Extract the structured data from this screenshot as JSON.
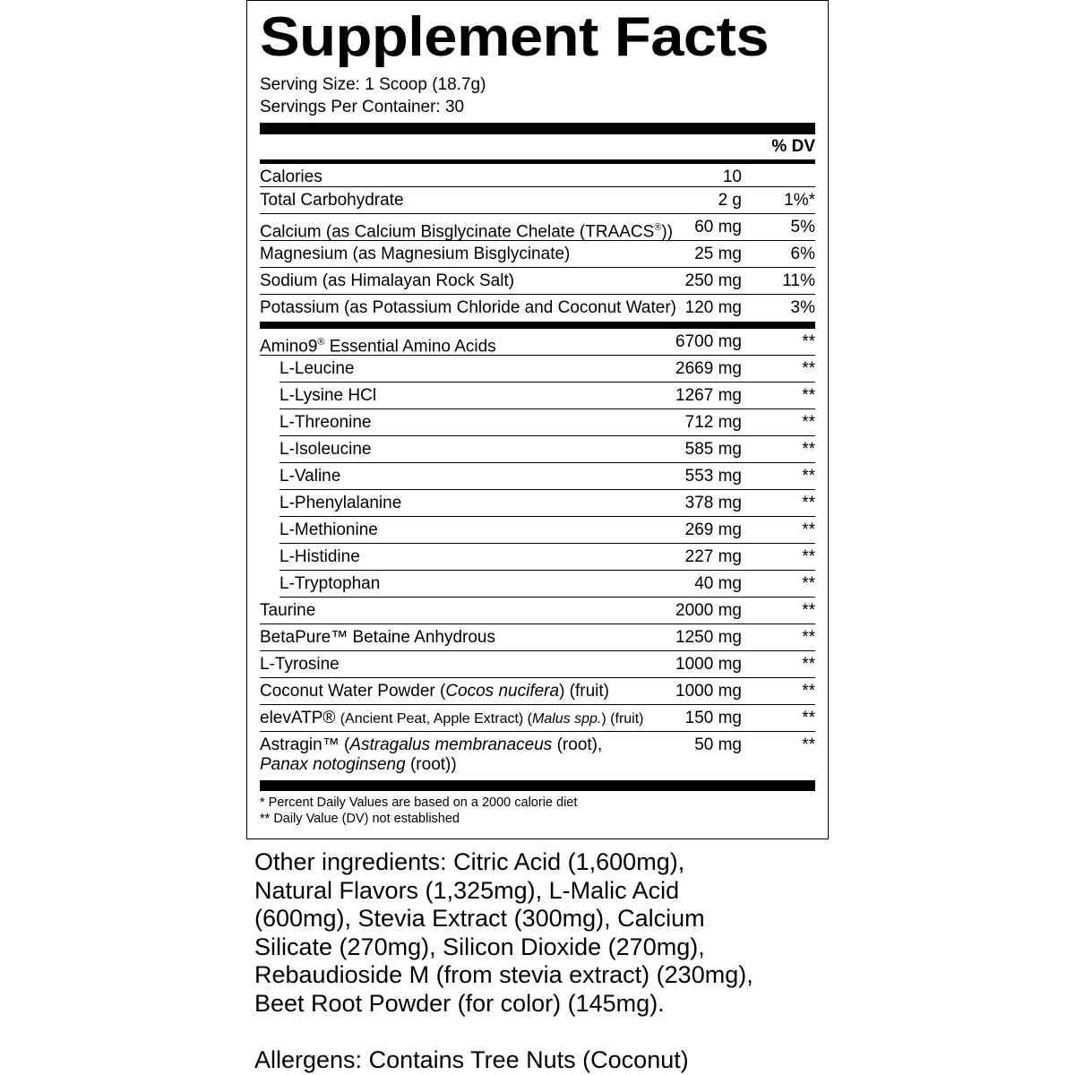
{
  "title": "Supplement Facts",
  "serving_size": "Serving Size: 1 Scoop (18.7g)",
  "servings_per_container": "Servings Per Container: 30",
  "dv_header": "% DV",
  "sections": [
    {
      "rows": [
        {
          "name": [
            {
              "text": "Calories"
            }
          ],
          "amount": "10"
        },
        {
          "name": [
            {
              "text": "Total Carbohydrate"
            }
          ],
          "amount": "2 g",
          "dv": "1%*"
        },
        {
          "name": [
            {
              "text": "Calcium (as Calcium Bisglycinate Chelate (TRAACS"
            },
            {
              "text": "®",
              "sup": true
            },
            {
              "text": "))"
            }
          ],
          "amount": "60 mg",
          "dv": "5%"
        },
        {
          "name": [
            {
              "text": "Magnesium (as Magnesium Bisglycinate)"
            }
          ],
          "amount": "25 mg",
          "dv": "6%"
        },
        {
          "name": [
            {
              "text": "Sodium (as Himalayan Rock Salt)"
            }
          ],
          "amount": "250 mg",
          "dv": "11%"
        },
        {
          "name": [
            {
              "text": "Potassium (as Potassium Chloride and Coconut Water)"
            }
          ],
          "amount": "120 mg",
          "dv": "3%"
        }
      ]
    },
    {
      "rows": [
        {
          "name": [
            {
              "text": "Amino9"
            },
            {
              "text": "®",
              "sup": true
            },
            {
              "text": " Essential Amino Acids"
            }
          ],
          "amount": "6700 mg",
          "dv": "**"
        },
        {
          "name": [
            {
              "text": "L-Leucine"
            }
          ],
          "amount": "2669 mg",
          "dv": "**",
          "indent": true
        },
        {
          "name": [
            {
              "text": "L-Lysine HCl"
            }
          ],
          "amount": "1267 mg",
          "dv": "**",
          "indent": true
        },
        {
          "name": [
            {
              "text": "L-Threonine"
            }
          ],
          "amount": "712 mg",
          "dv": "**",
          "indent": true
        },
        {
          "name": [
            {
              "text": "L-Isoleucine"
            }
          ],
          "amount": "585 mg",
          "dv": "**",
          "indent": true
        },
        {
          "name": [
            {
              "text": "L-Valine"
            }
          ],
          "amount": "553 mg",
          "dv": "**",
          "indent": true
        },
        {
          "name": [
            {
              "text": "L-Phenylalanine"
            }
          ],
          "amount": "378 mg",
          "dv": "**",
          "indent": true
        },
        {
          "name": [
            {
              "text": "L-Methionine"
            }
          ],
          "amount": "269 mg",
          "dv": "**",
          "indent": true
        },
        {
          "name": [
            {
              "text": "L-Histidine"
            }
          ],
          "amount": "227 mg",
          "dv": "**",
          "indent": true
        },
        {
          "name": [
            {
              "text": "L-Tryptophan"
            }
          ],
          "amount": "40 mg",
          "dv": "**",
          "indent": true
        },
        {
          "name": [
            {
              "text": "Taurine"
            }
          ],
          "amount": "2000 mg",
          "dv": "**"
        },
        {
          "name": [
            {
              "text": "BetaPure™ Betaine Anhydrous"
            }
          ],
          "amount": "1250 mg",
          "dv": "**"
        },
        {
          "name": [
            {
              "text": "L-Tyrosine"
            }
          ],
          "amount": "1000 mg",
          "dv": "**"
        },
        {
          "name": [
            {
              "text": "Coconut Water Powder ("
            },
            {
              "text": "Cocos nucifera",
              "italic": true
            },
            {
              "text": ") (fruit)"
            }
          ],
          "amount": "1000 mg",
          "dv": "**"
        },
        {
          "name": [
            {
              "text": "elevATP® "
            },
            {
              "text": "(Ancient Peat, Apple Extract) (",
              "small": true
            },
            {
              "text": "Malus spp.",
              "small": true,
              "italic": true
            },
            {
              "text": ") (fruit)",
              "small": true
            }
          ],
          "amount": "150 mg",
          "dv": "**"
        },
        {
          "name": [
            {
              "text": "Astragin™ ("
            },
            {
              "text": "Astragalus membranaceus",
              "italic": true
            },
            {
              "text": " (root),"
            },
            {
              "text": "Panax notoginseng",
              "italic": true,
              "br": true
            },
            {
              "text": " (root))"
            }
          ],
          "amount": "50 mg",
          "dv": "**"
        }
      ]
    }
  ],
  "footnotes": [
    "* Percent Daily Values are based on a 2000 calorie diet",
    "** Daily Value (DV) not established"
  ],
  "other_ingredients": [
    "Other ingredients: Citric Acid (1,600mg),",
    "Natural Flavors (1,325mg), L-Malic Acid",
    "(600mg), Stevia Extract (300mg), Calcium",
    "Silicate (270mg), Silicon Dioxide (270mg),",
    "Rebaudioside M (from stevia extract) (230mg),",
    "Beet Root Powder (for color) (145mg)."
  ],
  "allergens": "Allergens: Contains Tree Nuts (Coconut)"
}
